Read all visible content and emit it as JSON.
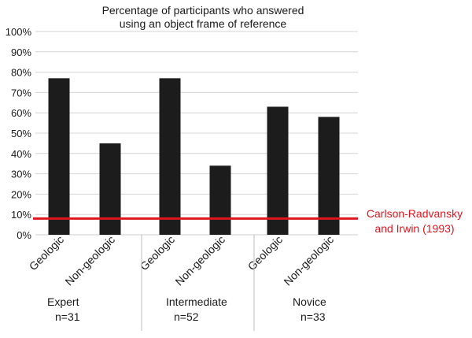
{
  "chart_data": {
    "type": "bar",
    "title_lines": [
      "Percentage of participants who answered",
      "using an object frame of reference"
    ],
    "yticks": [
      "0%",
      "10%",
      "20%",
      "30%",
      "40%",
      "50%",
      "60%",
      "70%",
      "80%",
      "90%",
      "100%"
    ],
    "ylim": [
      0,
      100
    ],
    "grid": true,
    "groups": [
      {
        "name": "Expert",
        "n": "n=31",
        "categories": [
          "Geologic",
          "Non-geologic"
        ],
        "values": [
          77,
          45
        ]
      },
      {
        "name": "Intermediate",
        "n": "n=52",
        "categories": [
          "Geologic",
          "Non-geologic"
        ],
        "values": [
          77,
          34
        ]
      },
      {
        "name": "Novice",
        "n": "n=33",
        "categories": [
          "Geologic",
          "Non-geologic"
        ],
        "values": [
          63,
          58
        ]
      }
    ],
    "bar_color": "#1c1c1c",
    "reference_line": {
      "value": 8,
      "label_lines": [
        "Carlson-Radvansky",
        "and Irwin (1993)"
      ],
      "color": "#e0141e"
    }
  }
}
